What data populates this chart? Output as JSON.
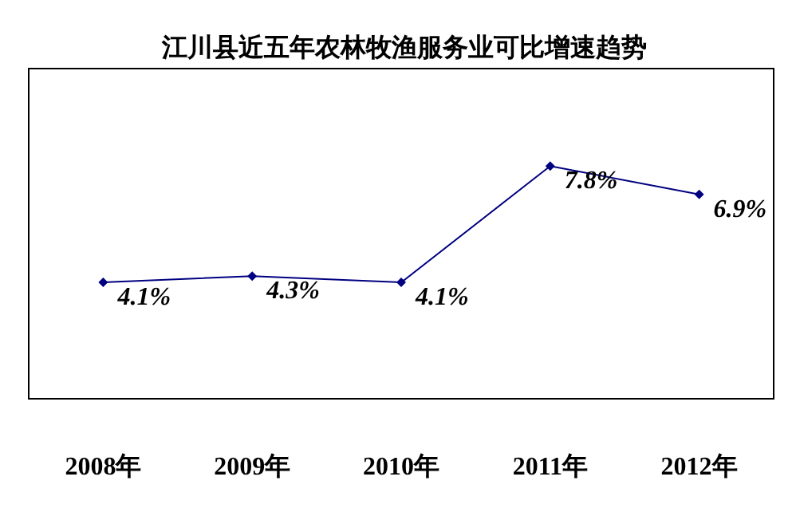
{
  "chart_data": {
    "type": "line",
    "title": "江川县近五年农林牧渔服务业可比增速趋势",
    "categories": [
      "2008年",
      "2009年",
      "2010年",
      "2011年",
      "2012年"
    ],
    "series": [
      {
        "color": "#000080",
        "values": [
          4.1,
          4.3,
          4.1,
          7.8,
          6.9
        ],
        "value_labels": [
          "4.1%",
          "4.3%",
          "4.1%",
          "7.8%",
          "6.9%"
        ]
      }
    ],
    "ylim": [
      0.4,
      10.9
    ],
    "tick_labels": "x",
    "marker": "diamond",
    "line_style": "solid"
  }
}
